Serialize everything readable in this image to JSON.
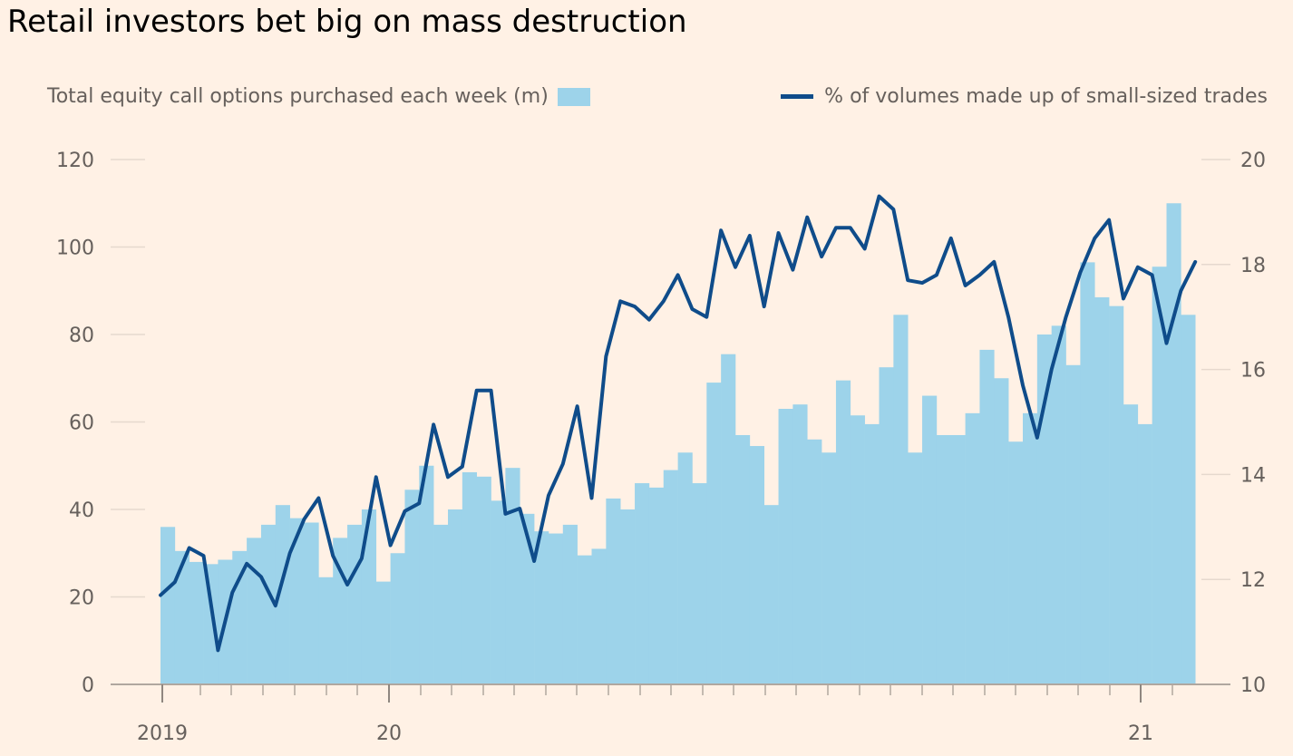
{
  "chart_data": {
    "type": "bar+line",
    "title": "Retail investors bet big on mass destruction",
    "legend": {
      "bars": "Total equity call options purchased each week (m)",
      "line": "% of volumes made up of small-sized trades"
    },
    "colors": {
      "bars": "#9dd3ea",
      "line": "#0f4c8a",
      "background": "#fff1e5",
      "grid": "#e6d9ce"
    },
    "y_left": {
      "ylim": [
        0,
        120
      ],
      "ticks": [
        "0",
        "20",
        "40",
        "60",
        "80",
        "100",
        "120"
      ]
    },
    "y_right": {
      "ylim": [
        10,
        20
      ],
      "ticks": [
        "10",
        "12",
        "14",
        "16",
        "18",
        "20"
      ]
    },
    "x_ticks": [
      "2019",
      "20",
      "21"
    ],
    "grid": true,
    "bars": {
      "name": "Total equity call options purchased each week (m)",
      "values": [
        36,
        30.5,
        28,
        27.5,
        28.5,
        30.5,
        33.5,
        36.5,
        41,
        38,
        37,
        24.5,
        33.5,
        36.5,
        40,
        23.5,
        30,
        44.5,
        50,
        36.5,
        40,
        48.5,
        47.5,
        42,
        49.5,
        39,
        35,
        34.5,
        36.5,
        29.5,
        31,
        42.5,
        40,
        46,
        45,
        49,
        53,
        46,
        69,
        75.5,
        57,
        54.5,
        41,
        63,
        64,
        56,
        53,
        69.5,
        61.5,
        59.5,
        72.5,
        84.5,
        53,
        66,
        57,
        57,
        62,
        76.5,
        70,
        55.5,
        62,
        80,
        82,
        73,
        96.5,
        88.5,
        86.5,
        64,
        59.5,
        95.5,
        110,
        84.5
      ]
    },
    "line": {
      "name": "% of volumes made up of small-sized trades",
      "values": [
        11.7,
        11.95,
        12.6,
        12.45,
        10.65,
        11.75,
        12.3,
        12.05,
        11.5,
        12.5,
        13.15,
        13.55,
        12.45,
        11.9,
        12.4,
        13.95,
        12.65,
        13.3,
        13.45,
        14.95,
        13.95,
        14.15,
        15.6,
        15.6,
        13.25,
        13.35,
        12.35,
        13.6,
        14.2,
        15.3,
        13.55,
        16.25,
        17.3,
        17.2,
        16.95,
        17.3,
        17.8,
        17.15,
        17.0,
        18.65,
        17.95,
        18.55,
        17.2,
        18.6,
        17.9,
        18.9,
        18.15,
        18.7,
        18.7,
        18.3,
        19.3,
        19.05,
        17.7,
        17.65,
        17.8,
        18.5,
        17.6,
        17.8,
        18.05,
        17.0,
        15.7,
        14.7,
        16.0,
        17.0,
        17.85,
        18.5,
        18.85,
        17.35,
        17.95,
        17.8,
        16.5,
        17.5,
        18.05
      ]
    }
  }
}
